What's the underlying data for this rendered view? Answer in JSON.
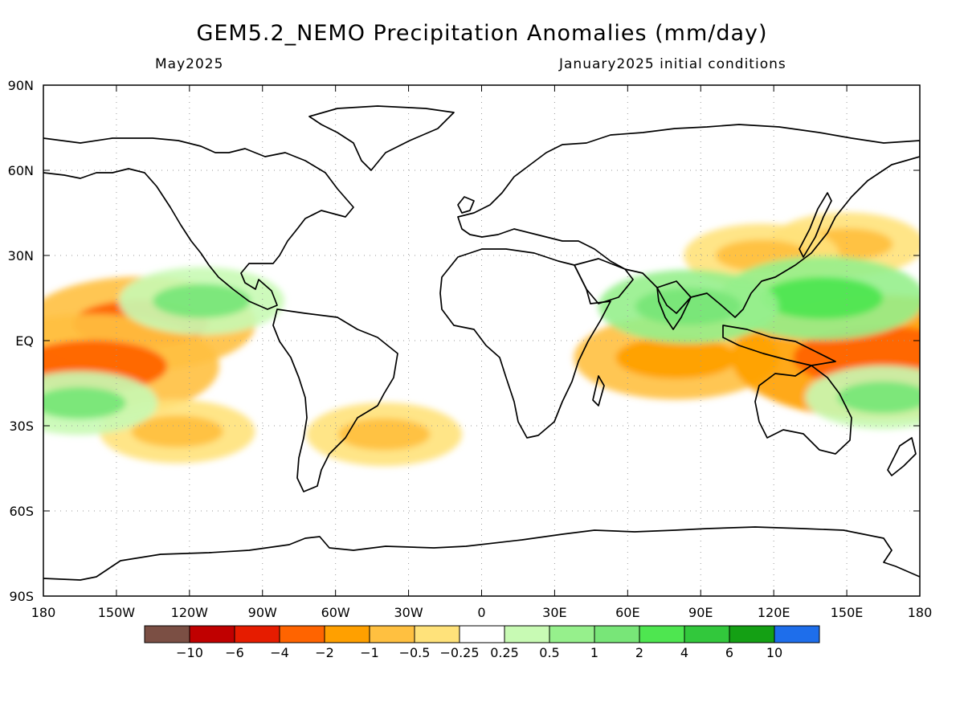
{
  "title": "GEM5.2_NEMO Precipitation Anomalies (mm/day)",
  "subtitle_left": "May2025",
  "subtitle_right": "January2025 initial conditions",
  "lat_labels": [
    "90N",
    "60N",
    "30N",
    "EQ",
    "30S",
    "60S",
    "90S"
  ],
  "lon_labels": [
    "180",
    "150W",
    "120W",
    "90W",
    "60W",
    "30W",
    "0",
    "30E",
    "60E",
    "90E",
    "120E",
    "150E",
    "180"
  ],
  "colorbar": {
    "colors": [
      "#7b4f44",
      "#c00000",
      "#e61c00",
      "#ff6400",
      "#ffa000",
      "#ffc040",
      "#ffe27a",
      "#ffffff",
      "#c8fab4",
      "#96f08c",
      "#78e678",
      "#4ee650",
      "#32c83c",
      "#14a014",
      "#1e6eeb"
    ],
    "labels": [
      "−10",
      "−6",
      "−4",
      "−2",
      "−1",
      "−0.5",
      "−0.25",
      "0.25",
      "0.5",
      "1",
      "2",
      "4",
      "6",
      "10"
    ]
  },
  "chart_data": {
    "type": "heatmap",
    "variable": "Precipitation Anomalies (mm/day)",
    "x_range": [
      -180,
      180
    ],
    "y_range": [
      -90,
      90
    ],
    "bounds": [
      -10,
      -6,
      -4,
      -2,
      -1,
      -0.5,
      -0.25,
      0.25,
      0.5,
      1,
      2,
      4,
      6,
      10
    ],
    "features": [
      {
        "lon": -140,
        "lat": 6,
        "value": -2.5
      },
      {
        "lon": -160,
        "lat": -9,
        "value": -3
      },
      {
        "lon": 80,
        "lat": -6,
        "value": -2
      },
      {
        "lon": 165,
        "lat": -6,
        "value": -4
      },
      {
        "lon": 150,
        "lat": 34,
        "value": -1
      },
      {
        "lon": 115,
        "lat": 30,
        "value": -1
      },
      {
        "lon": -40,
        "lat": -33,
        "value": -1
      },
      {
        "lon": -125,
        "lat": -32,
        "value": -1
      },
      {
        "lon": 140,
        "lat": 15,
        "value": 2
      },
      {
        "lon": 85,
        "lat": 12,
        "value": 1.5
      },
      {
        "lon": -115,
        "lat": 14,
        "value": 1.2
      },
      {
        "lon": -165,
        "lat": -22,
        "value": 1
      },
      {
        "lon": 165,
        "lat": -20,
        "value": 1
      }
    ]
  }
}
